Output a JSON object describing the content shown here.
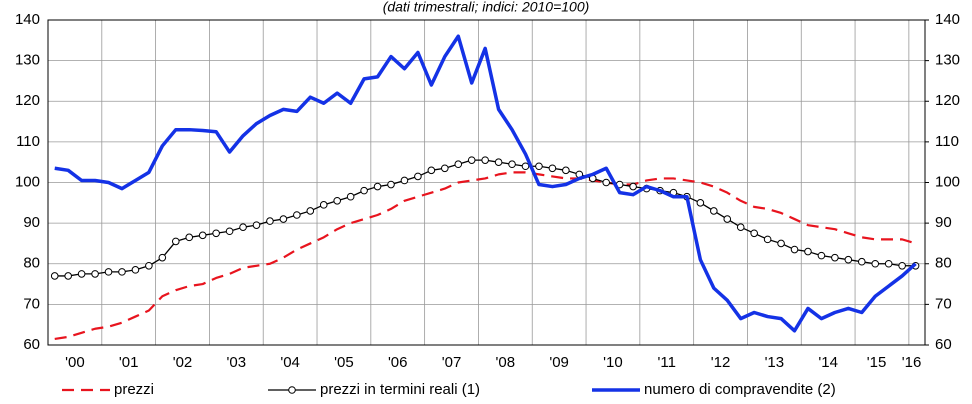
{
  "chart_data": {
    "type": "line",
    "subtitle": "(dati trimestrali; indici: 2010=100)",
    "x": [
      2000.125,
      2000.375,
      2000.625,
      2000.875,
      2001.125,
      2001.375,
      2001.625,
      2001.875,
      2002.125,
      2002.375,
      2002.625,
      2002.875,
      2003.125,
      2003.375,
      2003.625,
      2003.875,
      2004.125,
      2004.375,
      2004.625,
      2004.875,
      2005.125,
      2005.375,
      2005.625,
      2005.875,
      2006.125,
      2006.375,
      2006.625,
      2006.875,
      2007.125,
      2007.375,
      2007.625,
      2007.875,
      2008.125,
      2008.375,
      2008.625,
      2008.875,
      2009.125,
      2009.375,
      2009.625,
      2009.875,
      2010.125,
      2010.375,
      2010.625,
      2010.875,
      2011.125,
      2011.375,
      2011.625,
      2011.875,
      2012.125,
      2012.375,
      2012.625,
      2012.875,
      2013.125,
      2013.375,
      2013.625,
      2013.875,
      2014.125,
      2014.375,
      2014.625,
      2014.875,
      2015.125,
      2015.375,
      2015.625,
      2015.875,
      2016.125
    ],
    "xlim": [
      2000,
      2016.3
    ],
    "xticks": [
      {
        "value": 2000.5,
        "label": "'00"
      },
      {
        "value": 2001.5,
        "label": "'01"
      },
      {
        "value": 2002.5,
        "label": "'02"
      },
      {
        "value": 2003.5,
        "label": "'03"
      },
      {
        "value": 2004.5,
        "label": "'04"
      },
      {
        "value": 2005.5,
        "label": "'05"
      },
      {
        "value": 2006.5,
        "label": "'06"
      },
      {
        "value": 2007.5,
        "label": "'07"
      },
      {
        "value": 2008.5,
        "label": "'08"
      },
      {
        "value": 2009.5,
        "label": "'09"
      },
      {
        "value": 2010.5,
        "label": "'10"
      },
      {
        "value": 2011.5,
        "label": "'11"
      },
      {
        "value": 2012.5,
        "label": "'12"
      },
      {
        "value": 2013.5,
        "label": "'13"
      },
      {
        "value": 2014.5,
        "label": "'14"
      },
      {
        "value": 2015.4,
        "label": "'15"
      },
      {
        "value": 2016.05,
        "label": "'16"
      }
    ],
    "ylim": [
      60,
      140
    ],
    "yticks": [
      60,
      70,
      80,
      90,
      100,
      110,
      120,
      130,
      140
    ],
    "y2lim": [
      60,
      140
    ],
    "y2ticks": [
      60,
      70,
      80,
      90,
      100,
      110,
      120,
      130,
      140
    ],
    "grid": true,
    "series": [
      {
        "name": "prezzi",
        "color": "#e8141e",
        "style": "dashed",
        "values": [
          61.5,
          62,
          63,
          64,
          64.5,
          65.5,
          67,
          68.5,
          72,
          73.5,
          74.5,
          75,
          76.5,
          77.5,
          79,
          79.5,
          80,
          81.5,
          83.5,
          85,
          86.5,
          88.5,
          90,
          91,
          92,
          93.5,
          95.5,
          96.5,
          97.5,
          98.5,
          100,
          100.5,
          101,
          102,
          102.5,
          102.5,
          102,
          101.5,
          101,
          101,
          100.5,
          100,
          99.5,
          99.5,
          100.5,
          101,
          101,
          100.5,
          100,
          99,
          97.5,
          95.5,
          94,
          93.5,
          92.5,
          91,
          89.5,
          89,
          88.5,
          87.5,
          86.5,
          86,
          86,
          86,
          85
        ]
      },
      {
        "name": "prezzi in termini reali (1)",
        "color": "#000000",
        "style": "markers",
        "values": [
          77,
          77,
          77.5,
          77.5,
          78,
          78,
          78.5,
          79.5,
          81.5,
          85.5,
          86.5,
          87,
          87.5,
          88,
          89,
          89.5,
          90.5,
          91,
          92,
          93,
          94.5,
          95.5,
          96.5,
          98,
          99,
          99.5,
          100.5,
          101.5,
          103,
          103.5,
          104.5,
          105.5,
          105.5,
          105,
          104.5,
          104,
          104,
          103.5,
          103,
          102,
          101,
          100,
          99.5,
          99,
          98.5,
          98,
          97.5,
          96.5,
          95,
          93,
          91,
          89,
          87.5,
          86,
          85,
          83.5,
          83,
          82,
          81.5,
          81,
          80.5,
          80,
          80,
          79.5,
          79.5
        ]
      },
      {
        "name": "numero di compravendite (2)",
        "color": "#1432e6",
        "style": "thick",
        "values": [
          103.5,
          103,
          100.5,
          100.5,
          100,
          98.5,
          100.5,
          102.5,
          109,
          113,
          113,
          112.8,
          112.5,
          107.5,
          111.5,
          114.5,
          116.5,
          118,
          117.5,
          121,
          119.5,
          122,
          119.5,
          125.5,
          126,
          131,
          128,
          132,
          124,
          131,
          136,
          124.5,
          133,
          118,
          113,
          107,
          99.5,
          99,
          99.5,
          101,
          102,
          103.5,
          97.5,
          97,
          99,
          98,
          96.5,
          96.5,
          81,
          74,
          71,
          66.5,
          68,
          67,
          66.5,
          63.5,
          69,
          66.5,
          68,
          69,
          68,
          72,
          74.5,
          77,
          80
        ]
      }
    ]
  }
}
